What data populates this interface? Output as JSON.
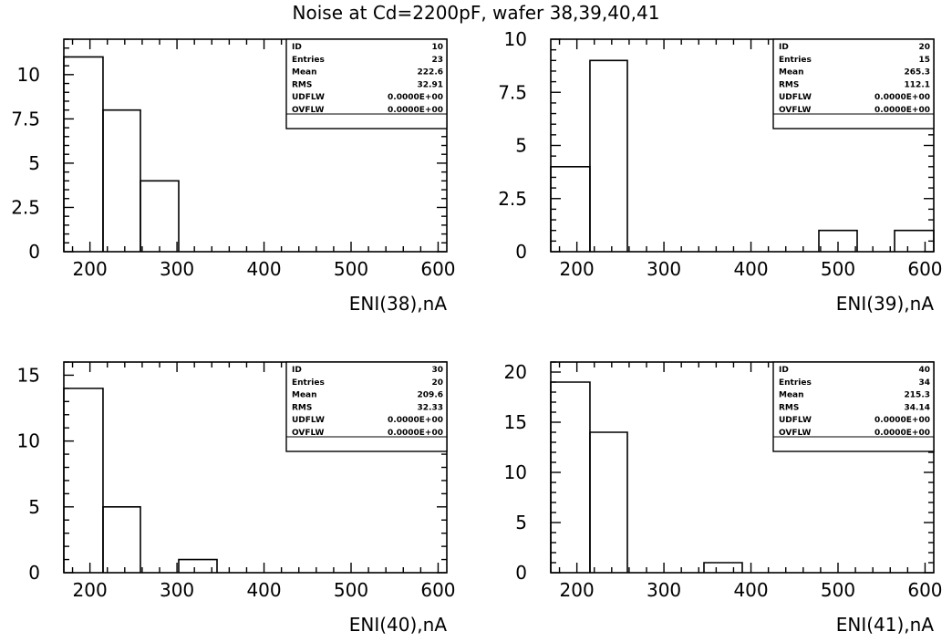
{
  "title": "Noise at Cd=2200pF, wafer 38,39,40,41",
  "stats_labels": [
    "ID",
    "Entries",
    "Mean",
    "RMS",
    "UDFLW",
    "OVFLW"
  ],
  "chart_data": [
    {
      "type": "bar",
      "xlabel": "ENI(38),nA",
      "ylabel": "",
      "xlim": [
        170,
        610
      ],
      "ylim": [
        0,
        12
      ],
      "xticks": [
        200,
        300,
        400,
        500,
        600
      ],
      "yticks": [
        0,
        2.5,
        5,
        7.5,
        10
      ],
      "ytick_labels": [
        "0",
        "2.5",
        "5",
        "7.5",
        "10"
      ],
      "bins": [
        {
          "x0": 170,
          "x1": 215,
          "value": 11
        },
        {
          "x0": 215,
          "x1": 258,
          "value": 8
        },
        {
          "x0": 258,
          "x1": 302,
          "value": 4
        }
      ],
      "stats": {
        "ID": "10",
        "Entries": "23",
        "Mean": "222.6",
        "RMS": "32.91",
        "UDFLW": "0.0000E+00",
        "OVFLW": "0.0000E+00"
      }
    },
    {
      "type": "bar",
      "xlabel": "ENI(39),nA",
      "ylabel": "",
      "xlim": [
        170,
        610
      ],
      "ylim": [
        0,
        10
      ],
      "xticks": [
        200,
        300,
        400,
        500,
        600
      ],
      "yticks": [
        0,
        2.5,
        5,
        7.5,
        10
      ],
      "ytick_labels": [
        "0",
        "2.5",
        "5",
        "7.5",
        "10"
      ],
      "bins": [
        {
          "x0": 170,
          "x1": 215,
          "value": 4
        },
        {
          "x0": 215,
          "x1": 258,
          "value": 9
        },
        {
          "x0": 478,
          "x1": 522,
          "value": 1
        },
        {
          "x0": 565,
          "x1": 610,
          "value": 1
        }
      ],
      "stats": {
        "ID": "20",
        "Entries": "15",
        "Mean": "265.3",
        "RMS": "112.1",
        "UDFLW": "0.0000E+00",
        "OVFLW": "0.0000E+00"
      }
    },
    {
      "type": "bar",
      "xlabel": "ENI(40),nA",
      "ylabel": "",
      "xlim": [
        170,
        610
      ],
      "ylim": [
        0,
        16
      ],
      "xticks": [
        200,
        300,
        400,
        500,
        600
      ],
      "yticks": [
        0,
        5,
        10,
        15
      ],
      "ytick_labels": [
        "0",
        "5",
        "10",
        "15"
      ],
      "bins": [
        {
          "x0": 170,
          "x1": 215,
          "value": 14
        },
        {
          "x0": 215,
          "x1": 258,
          "value": 5
        },
        {
          "x0": 302,
          "x1": 346,
          "value": 1
        }
      ],
      "stats": {
        "ID": "30",
        "Entries": "20",
        "Mean": "209.6",
        "RMS": "32.33",
        "UDFLW": "0.0000E+00",
        "OVFLW": "0.0000E+00"
      }
    },
    {
      "type": "bar",
      "xlabel": "ENI(41),nA",
      "ylabel": "",
      "xlim": [
        170,
        610
      ],
      "ylim": [
        0,
        21
      ],
      "xticks": [
        200,
        300,
        400,
        500,
        600
      ],
      "yticks": [
        0,
        5,
        10,
        15,
        20
      ],
      "ytick_labels": [
        "0",
        "5",
        "10",
        "15",
        "20"
      ],
      "bins": [
        {
          "x0": 170,
          "x1": 215,
          "value": 19
        },
        {
          "x0": 215,
          "x1": 258,
          "value": 14
        },
        {
          "x0": 346,
          "x1": 390,
          "value": 1
        }
      ],
      "stats": {
        "ID": "40",
        "Entries": "34",
        "Mean": "215.3",
        "RMS": "34.14",
        "UDFLW": "0.0000E+00",
        "OVFLW": "0.0000E+00"
      }
    }
  ]
}
